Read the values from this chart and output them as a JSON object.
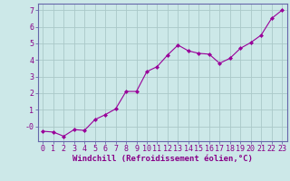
{
  "x": [
    0,
    1,
    2,
    3,
    4,
    5,
    6,
    7,
    8,
    9,
    10,
    11,
    12,
    13,
    14,
    15,
    16,
    17,
    18,
    19,
    20,
    21,
    22,
    23
  ],
  "y": [
    -0.3,
    -0.35,
    -0.6,
    -0.2,
    -0.25,
    0.4,
    0.7,
    1.05,
    2.1,
    2.1,
    3.3,
    3.6,
    4.3,
    4.9,
    4.55,
    4.4,
    4.35,
    3.8,
    4.1,
    4.7,
    5.05,
    5.5,
    6.5,
    7.0
  ],
  "line_color": "#990099",
  "marker": "D",
  "marker_size": 2.0,
  "bg_color": "#cce8e8",
  "grid_color": "#aac8c8",
  "xlabel": "Windchill (Refroidissement éolien,°C)",
  "ylim": [
    -0.9,
    7.4
  ],
  "xlim": [
    -0.5,
    23.5
  ],
  "yticks": [
    0,
    1,
    2,
    3,
    4,
    5,
    6,
    7
  ],
  "ytick_labels": [
    "-0",
    "1",
    "2",
    "3",
    "4",
    "5",
    "6",
    "7"
  ],
  "xticks": [
    0,
    1,
    2,
    3,
    4,
    5,
    6,
    7,
    8,
    9,
    10,
    11,
    12,
    13,
    14,
    15,
    16,
    17,
    18,
    19,
    20,
    21,
    22,
    23
  ],
  "tick_label_color": "#880088",
  "xlabel_color": "#880088",
  "xlabel_fontsize": 6.5,
  "tick_fontsize": 6.0,
  "border_color": "#6666aa",
  "linewidth": 0.8
}
